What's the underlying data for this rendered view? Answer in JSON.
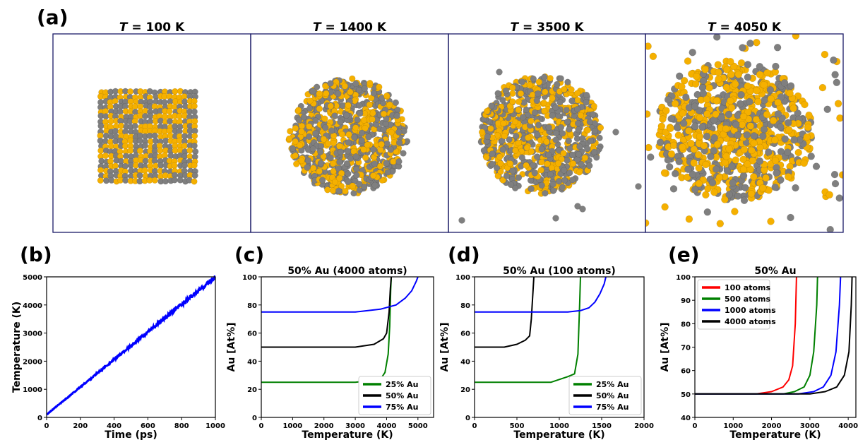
{
  "panel_a": {
    "label": "(a)",
    "snapshots": [
      {
        "title_var": "T",
        "title_value": " = 100 K",
        "shape": "cube",
        "au_fraction": 0.5
      },
      {
        "title_var": "T",
        "title_value": " = 1400 K",
        "shape": "sphere",
        "au_fraction": 0.5
      },
      {
        "title_var": "T",
        "title_value": " = 3500 K",
        "shape": "sphere-evaporating",
        "au_fraction": 0.5
      },
      {
        "title_var": "T",
        "title_value": " = 4050 K",
        "shape": "disordered-gas",
        "au_fraction": 0.5
      }
    ],
    "colors": {
      "au": "#f5b000",
      "other": "#7f7f7f",
      "frame": "#1a1a66"
    }
  },
  "chart_data": [
    {
      "id": "b",
      "label": "(b)",
      "type": "line",
      "title": "",
      "xlabel": "Time (ps)",
      "ylabel": "Temperature (K)",
      "xlim": [
        0,
        1000
      ],
      "ylim": [
        0,
        5000
      ],
      "xticks": [
        0,
        200,
        400,
        600,
        800,
        1000
      ],
      "yticks": [
        0,
        1000,
        2000,
        3000,
        4000,
        5000
      ],
      "series": [
        {
          "color": "#0000ff",
          "x": [
            0,
            200,
            400,
            600,
            800,
            1000
          ],
          "y": [
            100,
            1080,
            2060,
            3040,
            4020,
            5000
          ],
          "noise": "increasing"
        }
      ],
      "legend": null
    },
    {
      "id": "c",
      "label": "(c)",
      "type": "line",
      "title": "50% Au (4000 atoms)",
      "xlabel": "Temperature (K)",
      "ylabel": "Au [At%]",
      "xlim": [
        0,
        5500
      ],
      "ylim": [
        0,
        100
      ],
      "xticks": [
        0,
        1000,
        2000,
        3000,
        4000,
        5000
      ],
      "yticks": [
        0,
        20,
        40,
        60,
        80,
        100
      ],
      "series": [
        {
          "name": "25% Au",
          "color": "#008000",
          "x": [
            0,
            3000,
            3800,
            3950,
            4050,
            4100,
            4130,
            4150
          ],
          "y": [
            25,
            25,
            27,
            32,
            45,
            65,
            90,
            100
          ]
        },
        {
          "name": "50% Au",
          "color": "#000000",
          "x": [
            0,
            3000,
            3600,
            3900,
            4000,
            4080,
            4120,
            4150
          ],
          "y": [
            50,
            50,
            52,
            56,
            60,
            75,
            92,
            100
          ]
        },
        {
          "name": "75% Au",
          "color": "#0000ff",
          "x": [
            0,
            3000,
            3800,
            4300,
            4600,
            4800,
            4950,
            5000
          ],
          "y": [
            75,
            75,
            77,
            80,
            85,
            90,
            97,
            100
          ]
        }
      ],
      "legend": "lower-right"
    },
    {
      "id": "d",
      "label": "(d)",
      "type": "line",
      "title": "50% Au (100 atoms)",
      "xlabel": "Temperature (K)",
      "ylabel": "Au [At%]",
      "xlim": [
        0,
        2000
      ],
      "ylim": [
        0,
        100
      ],
      "xticks": [
        0,
        500,
        1000,
        1500,
        2000
      ],
      "yticks": [
        0,
        20,
        40,
        60,
        80,
        100
      ],
      "series": [
        {
          "name": "25% Au",
          "color": "#008000",
          "x": [
            0,
            900,
            1000,
            1100,
            1180,
            1220,
            1240,
            1250
          ],
          "y": [
            25,
            25,
            27,
            29,
            31,
            45,
            80,
            100
          ]
        },
        {
          "name": "50% Au",
          "color": "#000000",
          "x": [
            0,
            350,
            500,
            600,
            650,
            670,
            690,
            700
          ],
          "y": [
            50,
            50,
            52,
            55,
            58,
            70,
            90,
            100
          ]
        },
        {
          "name": "75% Au",
          "color": "#0000ff",
          "x": [
            0,
            1100,
            1250,
            1350,
            1420,
            1480,
            1530,
            1550
          ],
          "y": [
            75,
            75,
            76,
            78,
            82,
            88,
            95,
            100
          ]
        }
      ],
      "legend": "lower-right"
    },
    {
      "id": "e",
      "label": "(e)",
      "type": "line",
      "title": "50% Au",
      "xlabel": "Temperature (K)",
      "ylabel": "Au [At%]",
      "xlim": [
        0,
        4200
      ],
      "ylim": [
        40,
        100
      ],
      "xticks": [
        0,
        1000,
        2000,
        3000,
        4000
      ],
      "yticks": [
        40,
        50,
        60,
        70,
        80,
        90,
        100
      ],
      "series": [
        {
          "name": "100 atoms",
          "color": "#ff0000",
          "x": [
            0,
            1600,
            2000,
            2300,
            2450,
            2550,
            2620,
            2650
          ],
          "y": [
            50,
            50,
            51,
            53,
            56,
            62,
            80,
            100
          ]
        },
        {
          "name": "500 atoms",
          "color": "#008000",
          "x": [
            0,
            2300,
            2600,
            2850,
            3000,
            3100,
            3180,
            3200
          ],
          "y": [
            50,
            50,
            51,
            53,
            58,
            68,
            88,
            100
          ]
        },
        {
          "name": "1000 atoms",
          "color": "#0000ff",
          "x": [
            0,
            2700,
            3100,
            3350,
            3550,
            3680,
            3770,
            3800
          ],
          "y": [
            50,
            50,
            51,
            53,
            58,
            68,
            88,
            100
          ]
        },
        {
          "name": "4000 atoms",
          "color": "#000000",
          "x": [
            0,
            3000,
            3400,
            3700,
            3900,
            4020,
            4080,
            4100
          ],
          "y": [
            50,
            50,
            51,
            53,
            58,
            68,
            88,
            100
          ]
        }
      ],
      "legend": "upper-left"
    }
  ]
}
